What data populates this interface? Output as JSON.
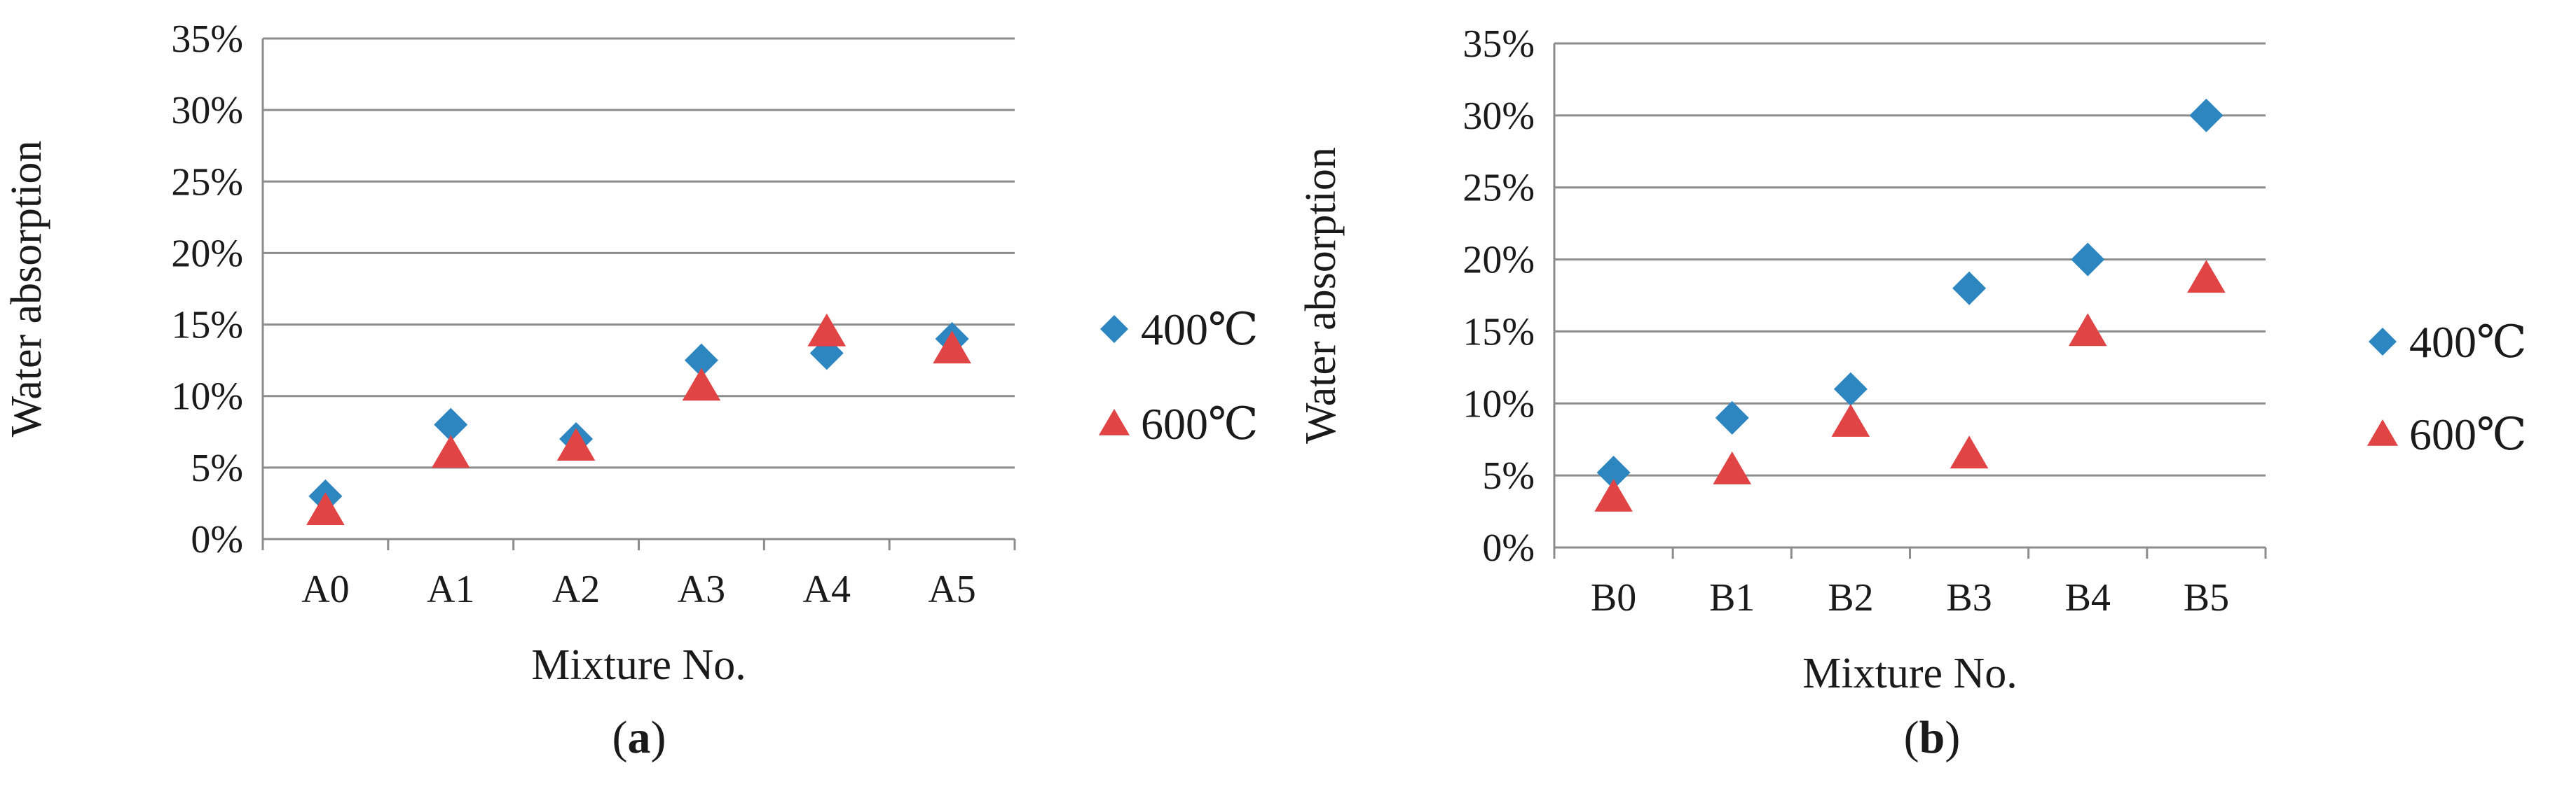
{
  "chart_data": [
    {
      "type": "scatter",
      "panel_label": "a",
      "title": "",
      "xlabel": "Mixture No.",
      "ylabel": "Water absorption",
      "categories": [
        "A0",
        "A1",
        "A2",
        "A3",
        "A4",
        "A5"
      ],
      "ylim": [
        0,
        35
      ],
      "yticks": [
        "0%",
        "5%",
        "10%",
        "15%",
        "20%",
        "25%",
        "30%",
        "35%"
      ],
      "grid": "horizontal",
      "legend_position": "right",
      "series": [
        {
          "name": "400℃",
          "marker": "diamond",
          "color": "#2e86c1",
          "values": [
            3,
            8,
            7,
            12.5,
            13,
            14
          ]
        },
        {
          "name": "600℃",
          "marker": "triangle",
          "color": "#e04444",
          "values": [
            2,
            6,
            6.5,
            10.7,
            14.5,
            13.3
          ]
        }
      ]
    },
    {
      "type": "scatter",
      "panel_label": "b",
      "title": "",
      "xlabel": "Mixture No.",
      "ylabel": "Water absorption",
      "categories": [
        "B0",
        "B1",
        "B2",
        "B3",
        "B4",
        "B5"
      ],
      "ylim": [
        0,
        35
      ],
      "yticks": [
        "0%",
        "5%",
        "10%",
        "15%",
        "20%",
        "25%",
        "30%",
        "35%"
      ],
      "grid": "horizontal",
      "legend_position": "right",
      "series": [
        {
          "name": "400℃",
          "marker": "diamond",
          "color": "#2e86c1",
          "values": [
            5.2,
            9,
            11,
            18,
            20,
            30
          ]
        },
        {
          "name": "600℃",
          "marker": "triangle",
          "color": "#e04444",
          "values": [
            3.5,
            5.4,
            8.7,
            6.5,
            15,
            18.7
          ]
        }
      ]
    }
  ]
}
